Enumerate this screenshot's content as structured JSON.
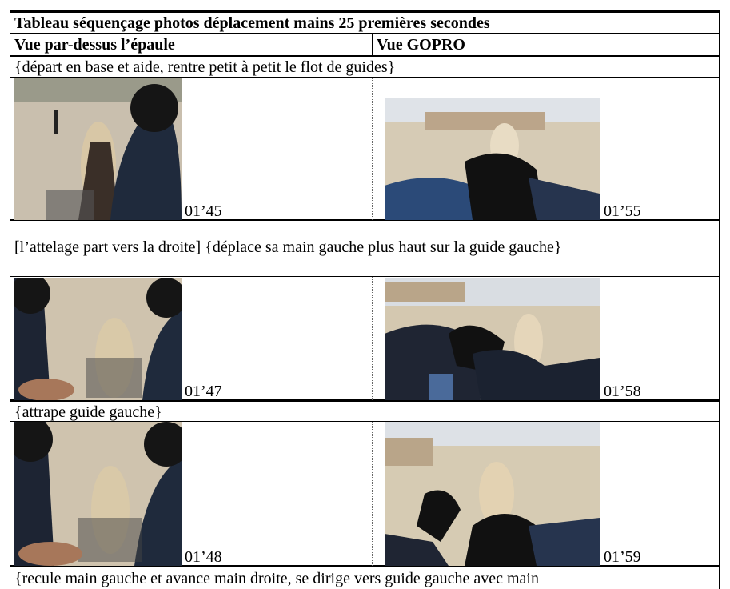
{
  "table": {
    "title": "Tableau séquençage photos déplacement mains 25 premières secondes",
    "headers": [
      "Vue par-dessus l’épaule",
      "Vue GOPRO"
    ],
    "rows": [
      {
        "caption": "{départ en base et aide, rentre petit à petit le flot de guides}",
        "left_time": "01’45",
        "right_time": "01’55"
      },
      {
        "caption": "[l’attelage part vers la droite] {déplace sa main gauche plus haut sur la guide gauche}",
        "left_time": "01’47",
        "right_time": "01’58"
      },
      {
        "caption": "{attrape guide gauche}",
        "left_time": "01’48",
        "right_time": "01’59"
      }
    ],
    "last_caption": "{recule main gauche et avance main droite, se dirige vers guide gauche avec main"
  }
}
